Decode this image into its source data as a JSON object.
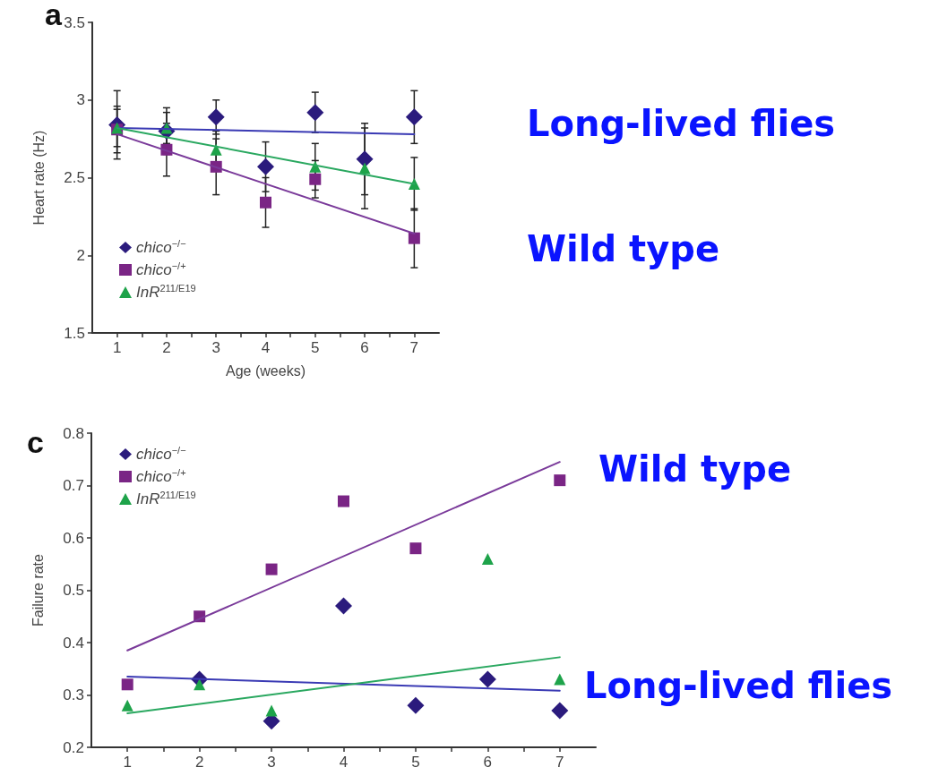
{
  "chart_data": [
    {
      "type": "scatter",
      "title": "a",
      "xlabel": "Age (weeks)",
      "ylabel": "Heart rate (Hz)",
      "legend": "bottom left",
      "x": [
        1,
        2,
        3,
        4,
        5,
        6,
        7
      ],
      "xlim": [
        0.5,
        7.5
      ],
      "xticks": [
        1,
        {
          "value": 1.5,
          "label": null
        },
        2,
        {
          "value": 2.5,
          "label": null
        },
        3,
        {
          "value": 3.5,
          "label": null
        },
        4,
        {
          "value": 4.5,
          "label": null
        },
        5,
        {
          "value": 5.5,
          "label": null
        },
        6,
        {
          "value": 6.5,
          "label": null
        },
        7
      ],
      "ylim": [
        1.5,
        3.5
      ],
      "yticks": [
        1.5,
        2,
        2.5,
        3,
        3.5
      ],
      "annotations": [
        "Long-lived flies",
        "Wild type"
      ],
      "series": [
        {
          "name": "chico$^{−/−}$",
          "type": "scatter",
          "marker": "diamond",
          "color": "#2b1b7d",
          "values": [
            2.84,
            2.8,
            2.89,
            2.57,
            2.92,
            2.62,
            2.89
          ],
          "errors": [
            0.22,
            0.15,
            0.11,
            0.16,
            0.13,
            0.23,
            0.17
          ]
        },
        {
          "name": "chico$^{−/+}$",
          "type": "scatter",
          "marker": "square",
          "color": "#7a2585",
          "values": [
            2.81,
            2.68,
            2.57,
            2.34,
            2.49,
            null,
            2.11
          ],
          "errors": [
            0.15,
            0.17,
            0.18,
            0.16,
            0.12,
            null,
            0.19
          ]
        },
        {
          "name": "InR$^{211/E19}$",
          "type": "scatter",
          "marker": "triangle",
          "color": "#1ea34a",
          "values": [
            2.82,
            2.82,
            2.68,
            null,
            2.57,
            2.56,
            2.46
          ],
          "errors": [
            0.12,
            0.1,
            0.12,
            null,
            0.15,
            0.26,
            0.17
          ]
        },
        {
          "type": "line",
          "marker": "none",
          "color": "#3a3ab4",
          "values": [
            2.82,
            null,
            null,
            null,
            null,
            null,
            2.78
          ]
        },
        {
          "type": "line",
          "marker": "none",
          "color": "#7a3a9a",
          "values": [
            2.78,
            null,
            null,
            null,
            null,
            null,
            2.14
          ]
        },
        {
          "type": "line",
          "marker": "none",
          "color": "#2aa860",
          "values": [
            2.82,
            null,
            null,
            null,
            null,
            null,
            2.46
          ]
        }
      ]
    },
    {
      "type": "scatter",
      "title": "c",
      "ylabel": "Failure rate",
      "legend": "top left",
      "x": [
        1,
        2,
        3,
        4,
        5,
        6,
        7
      ],
      "xlim": [
        0.5,
        7.5
      ],
      "xticks": [
        1,
        {
          "value": 1.5,
          "label": null
        },
        2,
        {
          "value": 2.5,
          "label": null
        },
        3,
        {
          "value": 3.5,
          "label": null
        },
        4,
        {
          "value": 4.5,
          "label": null
        },
        5,
        {
          "value": 5.5,
          "label": null
        },
        6,
        {
          "value": 6.5,
          "label": null
        },
        7
      ],
      "ylim": [
        0.2,
        0.8
      ],
      "yticks": [
        0.2,
        0.3,
        0.4,
        0.5,
        0.6,
        0.7,
        0.8
      ],
      "annotations": [
        "Wild type",
        "Long-lived flies"
      ],
      "series": [
        {
          "name": "chico$^{−/−}$",
          "type": "scatter",
          "marker": "diamond",
          "color": "#2b1b7d",
          "values": [
            null,
            0.33,
            0.25,
            0.47,
            0.28,
            0.33,
            0.27
          ]
        },
        {
          "name": "chico$^{−/+}$",
          "type": "scatter",
          "marker": "square",
          "color": "#7a2585",
          "values": [
            0.32,
            0.45,
            0.54,
            0.67,
            0.58,
            null,
            0.71
          ]
        },
        {
          "name": "InR$^{211/E19}$",
          "type": "scatter",
          "marker": "triangle",
          "color": "#1ea34a",
          "values": [
            0.28,
            0.32,
            0.27,
            null,
            null,
            0.56,
            0.33
          ]
        },
        {
          "type": "line",
          "marker": "none",
          "color": "#3a3ab4",
          "values": [
            0.335,
            null,
            null,
            null,
            null,
            null,
            0.308
          ]
        },
        {
          "type": "line",
          "marker": "none",
          "color": "#7a3a9a",
          "values": [
            0.385,
            null,
            null,
            null,
            null,
            null,
            0.745
          ]
        },
        {
          "type": "line",
          "marker": "none",
          "color": "#2aa860",
          "values": [
            0.265,
            null,
            null,
            null,
            null,
            null,
            0.372
          ]
        }
      ]
    }
  ]
}
